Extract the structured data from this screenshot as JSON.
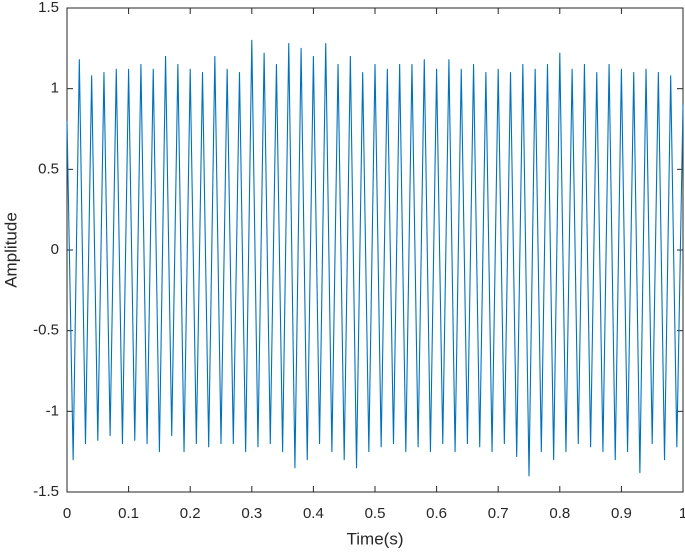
{
  "chart_data": {
    "type": "line",
    "xlabel": "Time(s)",
    "ylabel": "Amplitude",
    "xlim": [
      0,
      1
    ],
    "ylim": [
      -1.5,
      1.5
    ],
    "xticks": [
      0,
      0.1,
      0.2,
      0.3,
      0.4,
      0.5,
      0.6,
      0.7,
      0.8,
      0.9,
      1
    ],
    "yticks": [
      -1.5,
      -1,
      -0.5,
      0,
      0.5,
      1,
      1.5
    ],
    "grid": false,
    "series": [
      {
        "color": "#0072bd",
        "x": [
          0,
          0.01,
          0.02,
          0.03,
          0.04,
          0.05,
          0.06,
          0.07,
          0.08,
          0.09,
          0.1,
          0.11,
          0.12,
          0.13,
          0.14,
          0.15,
          0.16,
          0.17,
          0.18,
          0.19,
          0.2,
          0.21,
          0.22,
          0.23,
          0.24,
          0.25,
          0.26,
          0.27,
          0.28,
          0.29,
          0.3,
          0.31,
          0.32,
          0.33,
          0.34,
          0.35,
          0.36,
          0.37,
          0.38,
          0.39,
          0.4,
          0.41,
          0.42,
          0.43,
          0.44,
          0.45,
          0.46,
          0.47,
          0.48,
          0.49,
          0.5,
          0.51,
          0.52,
          0.53,
          0.54,
          0.55,
          0.56,
          0.57,
          0.58,
          0.59,
          0.6,
          0.61,
          0.62,
          0.63,
          0.64,
          0.65,
          0.66,
          0.67,
          0.68,
          0.69,
          0.7,
          0.71,
          0.72,
          0.73,
          0.74,
          0.75,
          0.76,
          0.77,
          0.78,
          0.79,
          0.8,
          0.81,
          0.82,
          0.83,
          0.84,
          0.85,
          0.86,
          0.87,
          0.88,
          0.89,
          0.9,
          0.91,
          0.92,
          0.93,
          0.94,
          0.95,
          0.96,
          0.97,
          0.98,
          0.99,
          1
        ],
        "values": [
          0.8,
          -1.3,
          1.18,
          -1.2,
          1.08,
          -1.18,
          1.1,
          -1.15,
          1.12,
          -1.2,
          1.12,
          -1.18,
          1.15,
          -1.2,
          1.12,
          -1.25,
          1.2,
          -1.15,
          1.15,
          -1.25,
          1.12,
          -1.2,
          1.1,
          -1.22,
          1.2,
          -1.2,
          1.12,
          -1.2,
          1.1,
          -1.25,
          1.3,
          -1.22,
          1.22,
          -1.2,
          1.15,
          -1.25,
          1.28,
          -1.35,
          1.25,
          -1.3,
          1.2,
          -1.2,
          1.28,
          -1.25,
          1.15,
          -1.3,
          1.2,
          -1.35,
          1.1,
          -1.25,
          1.15,
          -1.22,
          1.12,
          -1.2,
          1.15,
          -1.25,
          1.15,
          -1.22,
          1.18,
          -1.25,
          1.12,
          -1.2,
          1.18,
          -1.25,
          1.12,
          -1.2,
          1.15,
          -1.22,
          1.1,
          -1.25,
          1.12,
          -1.2,
          1.1,
          -1.28,
          1.15,
          -1.4,
          1.12,
          -1.25,
          1.15,
          -1.3,
          1.22,
          -1.25,
          1.12,
          -1.2,
          1.15,
          -1.22,
          1.1,
          -1.25,
          1.15,
          -1.3,
          1.12,
          -1.25,
          1.1,
          -1.38,
          1.12,
          -1.2,
          1.1,
          -1.3,
          1.08,
          -1.22,
          0.9
        ]
      }
    ]
  }
}
